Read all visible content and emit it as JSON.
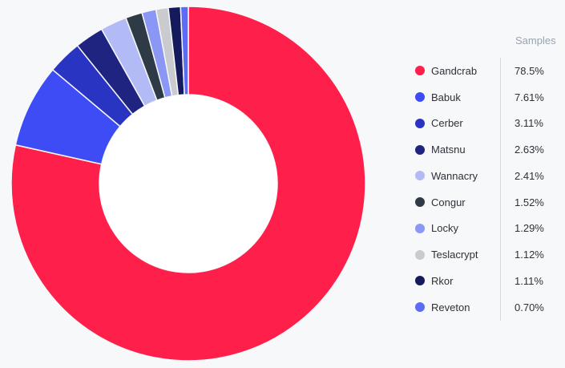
{
  "chart_data": {
    "type": "pie",
    "variant": "donut",
    "legend_header": "Samples",
    "legend_position": "right",
    "series": [
      {
        "name": "Gandcrab",
        "value": 78.5,
        "label": "78.5%",
        "color": "#ff1f4b"
      },
      {
        "name": "Babuk",
        "value": 7.61,
        "label": "7.61%",
        "color": "#3d4cf5"
      },
      {
        "name": "Cerber",
        "value": 3.11,
        "label": "3.11%",
        "color": "#2935c2"
      },
      {
        "name": "Matsnu",
        "value": 2.63,
        "label": "2.63%",
        "color": "#1f2480"
      },
      {
        "name": "Wannacry",
        "value": 2.41,
        "label": "2.41%",
        "color": "#b3bbf7"
      },
      {
        "name": "Congur",
        "value": 1.52,
        "label": "1.52%",
        "color": "#2e3a45"
      },
      {
        "name": "Locky",
        "value": 1.29,
        "label": "1.29%",
        "color": "#8b97f5"
      },
      {
        "name": "Teslacrypt",
        "value": 1.12,
        "label": "1.12%",
        "color": "#c9cbcf"
      },
      {
        "name": "Rkor",
        "value": 1.11,
        "label": "1.11%",
        "color": "#151a5c"
      },
      {
        "name": "Reveton",
        "value": 0.7,
        "label": "0.70%",
        "color": "#5b6cf7"
      }
    ]
  }
}
